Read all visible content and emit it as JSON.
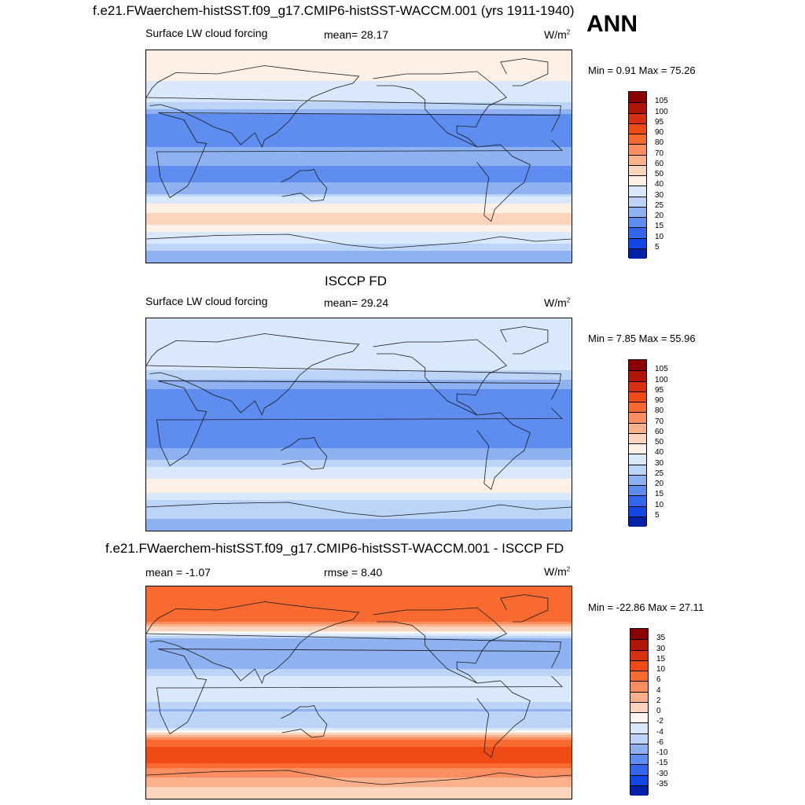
{
  "panels": [
    {
      "id": "model",
      "title": "f.e21.FWaerchem-histSST.f09_g17.CMIP6-histSST-WACCM.001 (yrs 1911-1940)",
      "left_label": "Surface LW cloud forcing",
      "center_label": "mean=  28.17",
      "units_base": "W/m",
      "units_exp": "2",
      "minmax": "Min =   0.91 Max =  75.26",
      "colorbar": {
        "levels": [
          "105",
          "100",
          "95",
          "90",
          "80",
          "70",
          "60",
          "50",
          "40",
          "30",
          "25",
          "20",
          "15",
          "10",
          "5"
        ],
        "colors": [
          "#8b0000",
          "#b01508",
          "#d63010",
          "#f04a15",
          "#f86a30",
          "#fb8e60",
          "#fdb08c",
          "#fdd5bc",
          "#fef0e4",
          "#d9e9fb",
          "#bcd4f8",
          "#8eb1f2",
          "#5e8cef",
          "#3266eb",
          "#1446e5",
          "#0020a8"
        ]
      },
      "chart_data": {
        "type": "heatmap",
        "title": "Surface LW cloud forcing",
        "units": "W/m^2",
        "mean": 28.17,
        "min": 0.91,
        "max": 75.26,
        "lat_profile": [
          {
            "lat": 90,
            "value": 50
          },
          {
            "lat": 75,
            "value": 45
          },
          {
            "lat": 60,
            "value": 38
          },
          {
            "lat": 45,
            "value": 30
          },
          {
            "lat": 30,
            "value": 15
          },
          {
            "lat": 15,
            "value": 18
          },
          {
            "lat": 0,
            "value": 22
          },
          {
            "lat": -15,
            "value": 18
          },
          {
            "lat": -30,
            "value": 22
          },
          {
            "lat": -45,
            "value": 48
          },
          {
            "lat": -55,
            "value": 55
          },
          {
            "lat": -65,
            "value": 40
          },
          {
            "lat": -80,
            "value": 25
          },
          {
            "lat": -90,
            "value": 20
          }
        ]
      }
    },
    {
      "id": "obs",
      "title": "ISCCP FD",
      "left_label": "Surface LW cloud forcing",
      "center_label": "mean=  29.24",
      "units_base": "W/m",
      "units_exp": "2",
      "minmax": "Min =   7.85 Max =  55.96",
      "colorbar": {
        "levels": [
          "105",
          "100",
          "95",
          "90",
          "80",
          "70",
          "60",
          "50",
          "40",
          "30",
          "25",
          "20",
          "15",
          "10",
          "5"
        ],
        "colors": [
          "#8b0000",
          "#b01508",
          "#d63010",
          "#f04a15",
          "#f86a30",
          "#fb8e60",
          "#fdb08c",
          "#fdd5bc",
          "#fef0e4",
          "#d9e9fb",
          "#bcd4f8",
          "#8eb1f2",
          "#5e8cef",
          "#3266eb",
          "#1446e5",
          "#0020a8"
        ]
      },
      "chart_data": {
        "type": "heatmap",
        "title": "Surface LW cloud forcing",
        "units": "W/m^2",
        "mean": 29.24,
        "min": 7.85,
        "max": 55.96,
        "lat_profile": [
          {
            "lat": 90,
            "value": 35
          },
          {
            "lat": 75,
            "value": 38
          },
          {
            "lat": 60,
            "value": 35
          },
          {
            "lat": 45,
            "value": 30
          },
          {
            "lat": 30,
            "value": 20
          },
          {
            "lat": 15,
            "value": 18
          },
          {
            "lat": 0,
            "value": 20
          },
          {
            "lat": -15,
            "value": 18
          },
          {
            "lat": -30,
            "value": 25
          },
          {
            "lat": -45,
            "value": 40
          },
          {
            "lat": -55,
            "value": 45
          },
          {
            "lat": -65,
            "value": 30
          },
          {
            "lat": -80,
            "value": 25
          },
          {
            "lat": -90,
            "value": 20
          }
        ]
      }
    },
    {
      "id": "diff",
      "title": "f.e21.FWaerchem-histSST.f09_g17.CMIP6-histSST-WACCM.001 - ISCCP FD",
      "left_label": "mean =  -1.07",
      "center_label": "rmse =   8.40",
      "units_base": "W/m",
      "units_exp": "2",
      "minmax": "Min = -22.86 Max =  27.11",
      "colorbar": {
        "levels": [
          "35",
          "30",
          "15",
          "10",
          "6",
          "4",
          "2",
          "0",
          "-2",
          "-4",
          "-6",
          "-10",
          "-15",
          "-30",
          "-35"
        ],
        "colors": [
          "#8b0000",
          "#b01508",
          "#d63010",
          "#f04a15",
          "#f86a30",
          "#fb8e60",
          "#fdb08c",
          "#fdd5bc",
          "#fef6f0",
          "#d9e9fb",
          "#bcd4f8",
          "#8eb1f2",
          "#5e8cef",
          "#3266eb",
          "#1446e5",
          "#0020a8"
        ]
      },
      "chart_data": {
        "type": "heatmap",
        "title": "model - ISCCP FD",
        "units": "W/m^2",
        "mean": -1.07,
        "rmse": 8.4,
        "min": -22.86,
        "max": 27.11,
        "lat_profile": [
          {
            "lat": 90,
            "value": 8
          },
          {
            "lat": 75,
            "value": 10
          },
          {
            "lat": 60,
            "value": 6
          },
          {
            "lat": 45,
            "value": -6
          },
          {
            "lat": 30,
            "value": -10
          },
          {
            "lat": 15,
            "value": -4
          },
          {
            "lat": 0,
            "value": -2
          },
          {
            "lat": -15,
            "value": -6
          },
          {
            "lat": -30,
            "value": -4
          },
          {
            "lat": -45,
            "value": 10
          },
          {
            "lat": -55,
            "value": 15
          },
          {
            "lat": -65,
            "value": 6
          },
          {
            "lat": -80,
            "value": 2
          },
          {
            "lat": -90,
            "value": 0
          }
        ]
      }
    }
  ],
  "season": "ANN"
}
